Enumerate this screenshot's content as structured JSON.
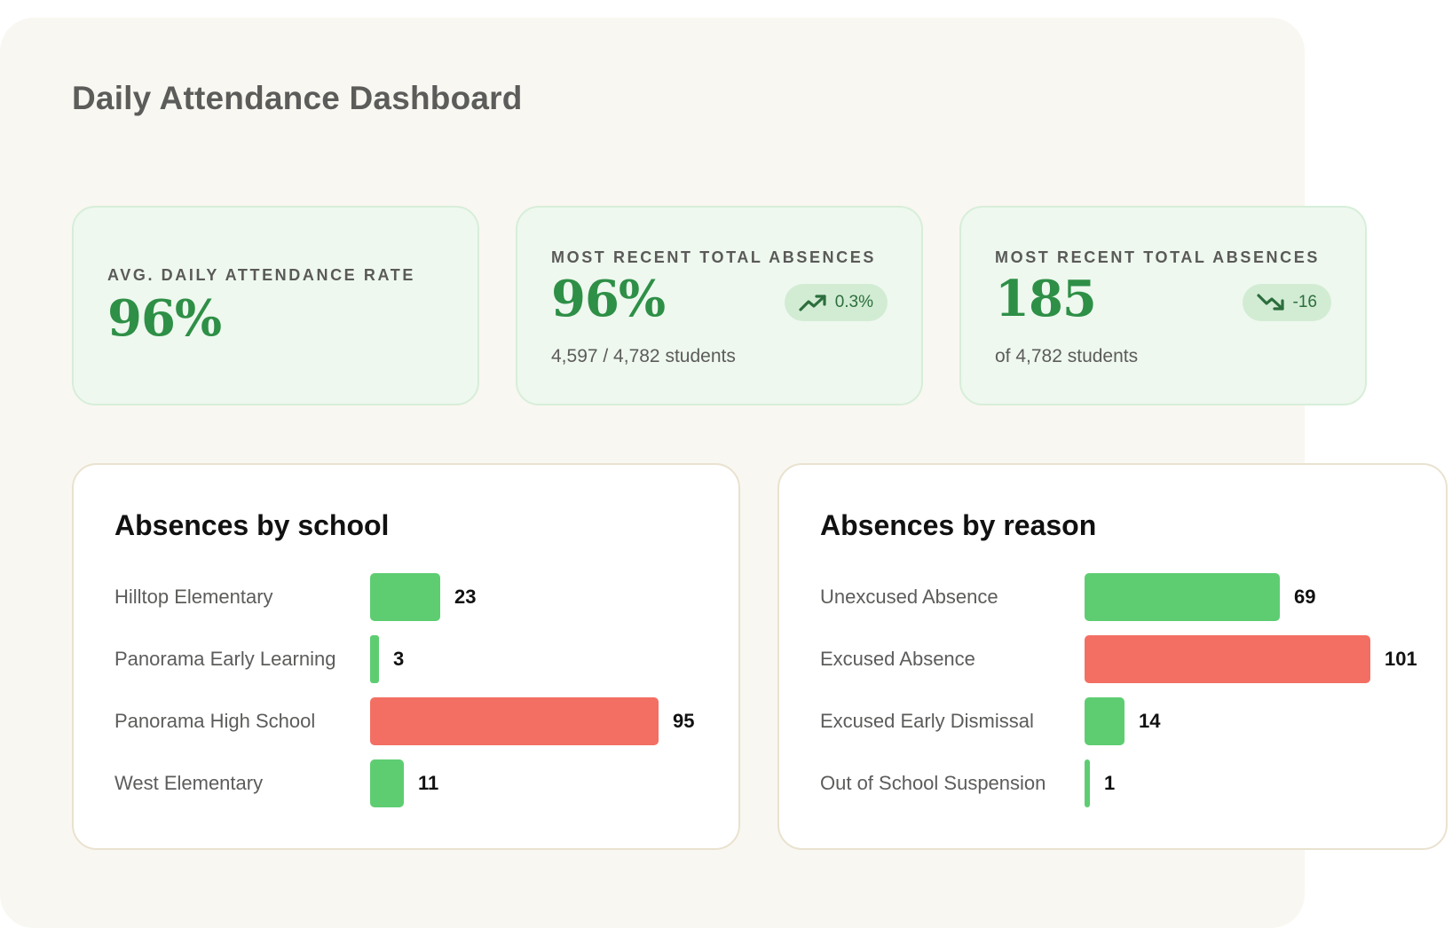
{
  "page": {
    "title": "Daily Attendance Dashboard"
  },
  "colors": {
    "panel_bg": "#f9f7f1",
    "card_bg": "#eef8ef",
    "accent_green": "#2e8f46",
    "bar_good": "#5ecd72",
    "bar_bad": "#f36f63"
  },
  "stats": [
    {
      "label": "AVG. DAILY ATTENDANCE RATE",
      "value": "96%"
    },
    {
      "label": "MOST RECENT TOTAL ABSENCES",
      "value": "96%",
      "sub": "4,597 / 4,782 students",
      "trend": {
        "direction": "up",
        "icon": "trend-up-icon",
        "text": "0.3%"
      }
    },
    {
      "label": "MOST RECENT TOTAL ABSENCES",
      "value": "185",
      "sub": "of 4,782 students",
      "trend": {
        "direction": "down",
        "icon": "trend-down-icon",
        "text": "-16"
      }
    }
  ],
  "charts": {
    "by_school": {
      "title": "Absences by school",
      "rows": [
        {
          "label": "Hilltop Elementary",
          "value": 23,
          "display": "23",
          "status": "good"
        },
        {
          "label": "Panorama Early Learning",
          "value": 3,
          "display": "3",
          "status": "good"
        },
        {
          "label": "Panorama High School",
          "value": 95,
          "display": "95",
          "status": "bad"
        },
        {
          "label": "West Elementary",
          "value": 11,
          "display": "11",
          "status": "good"
        }
      ]
    },
    "by_reason": {
      "title": "Absences by reason",
      "rows": [
        {
          "label": "Unexcused Absence",
          "value": 69,
          "display": "69",
          "status": "good"
        },
        {
          "label": "Excused Absence",
          "value": 101,
          "display": "101",
          "status": "bad"
        },
        {
          "label": "Excused Early Dismissal",
          "value": 14,
          "display": "14",
          "status": "good"
        },
        {
          "label": "Out of School Suspension",
          "value": 1,
          "display": "1",
          "status": "good"
        }
      ]
    }
  }
}
